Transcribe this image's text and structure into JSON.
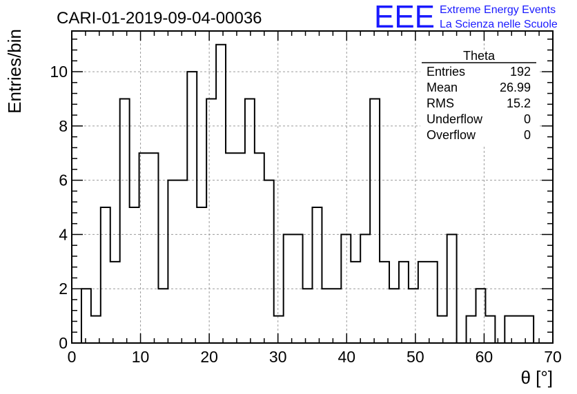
{
  "header": {
    "run_title": "CARI-01-2019-09-04-00036",
    "logo_text": "EEE",
    "logo_line1": "Extreme Energy Events",
    "logo_line2": "La Scienza nelle Scuole",
    "logo_color": "#1a1aff"
  },
  "stats": {
    "title": "Theta",
    "rows": [
      {
        "label": "Entries",
        "value": "192"
      },
      {
        "label": "Mean",
        "value": "26.99"
      },
      {
        "label": "RMS",
        "value": "15.2"
      },
      {
        "label": "Underflow",
        "value": "0"
      },
      {
        "label": "Overflow",
        "value": "0"
      }
    ]
  },
  "chart_data": {
    "type": "bar",
    "style": "step-histogram",
    "title": "CARI-01-2019-09-04-00036",
    "xlabel": "θ [°]",
    "ylabel": "Entries/bin",
    "xlim": [
      0,
      70
    ],
    "ylim": [
      0,
      11.5
    ],
    "bin_width": 1.4,
    "x_ticks": [
      0,
      10,
      20,
      30,
      40,
      50,
      60,
      70
    ],
    "y_ticks": [
      0,
      2,
      4,
      6,
      8,
      10
    ],
    "grid": true,
    "legend": "none",
    "bin_low_edges": [
      0,
      1.4,
      2.8,
      4.2,
      5.6,
      7,
      8.4,
      9.8,
      11.2,
      12.6,
      14,
      15.4,
      16.8,
      18.2,
      19.6,
      21,
      22.4,
      23.8,
      25.2,
      26.6,
      28,
      29.4,
      30.8,
      32.2,
      33.6,
      35,
      36.4,
      37.8,
      39.2,
      40.6,
      42,
      43.4,
      44.8,
      46.2,
      47.6,
      49,
      50.4,
      51.8,
      53.2,
      54.6,
      56,
      57.4,
      58.8,
      60.2,
      61.6,
      63,
      64.4,
      65.8,
      67.2,
      68.6
    ],
    "values": [
      0,
      2,
      1,
      5,
      3,
      9,
      5,
      7,
      7,
      2,
      6,
      6,
      10,
      5,
      9,
      11,
      7,
      7,
      9,
      7,
      6,
      1,
      4,
      4,
      2,
      5,
      2,
      2,
      4,
      3,
      4,
      9,
      3,
      2,
      3,
      2,
      3,
      3,
      1,
      4,
      0,
      1,
      2,
      1,
      0,
      1,
      1,
      1,
      0,
      0
    ]
  }
}
